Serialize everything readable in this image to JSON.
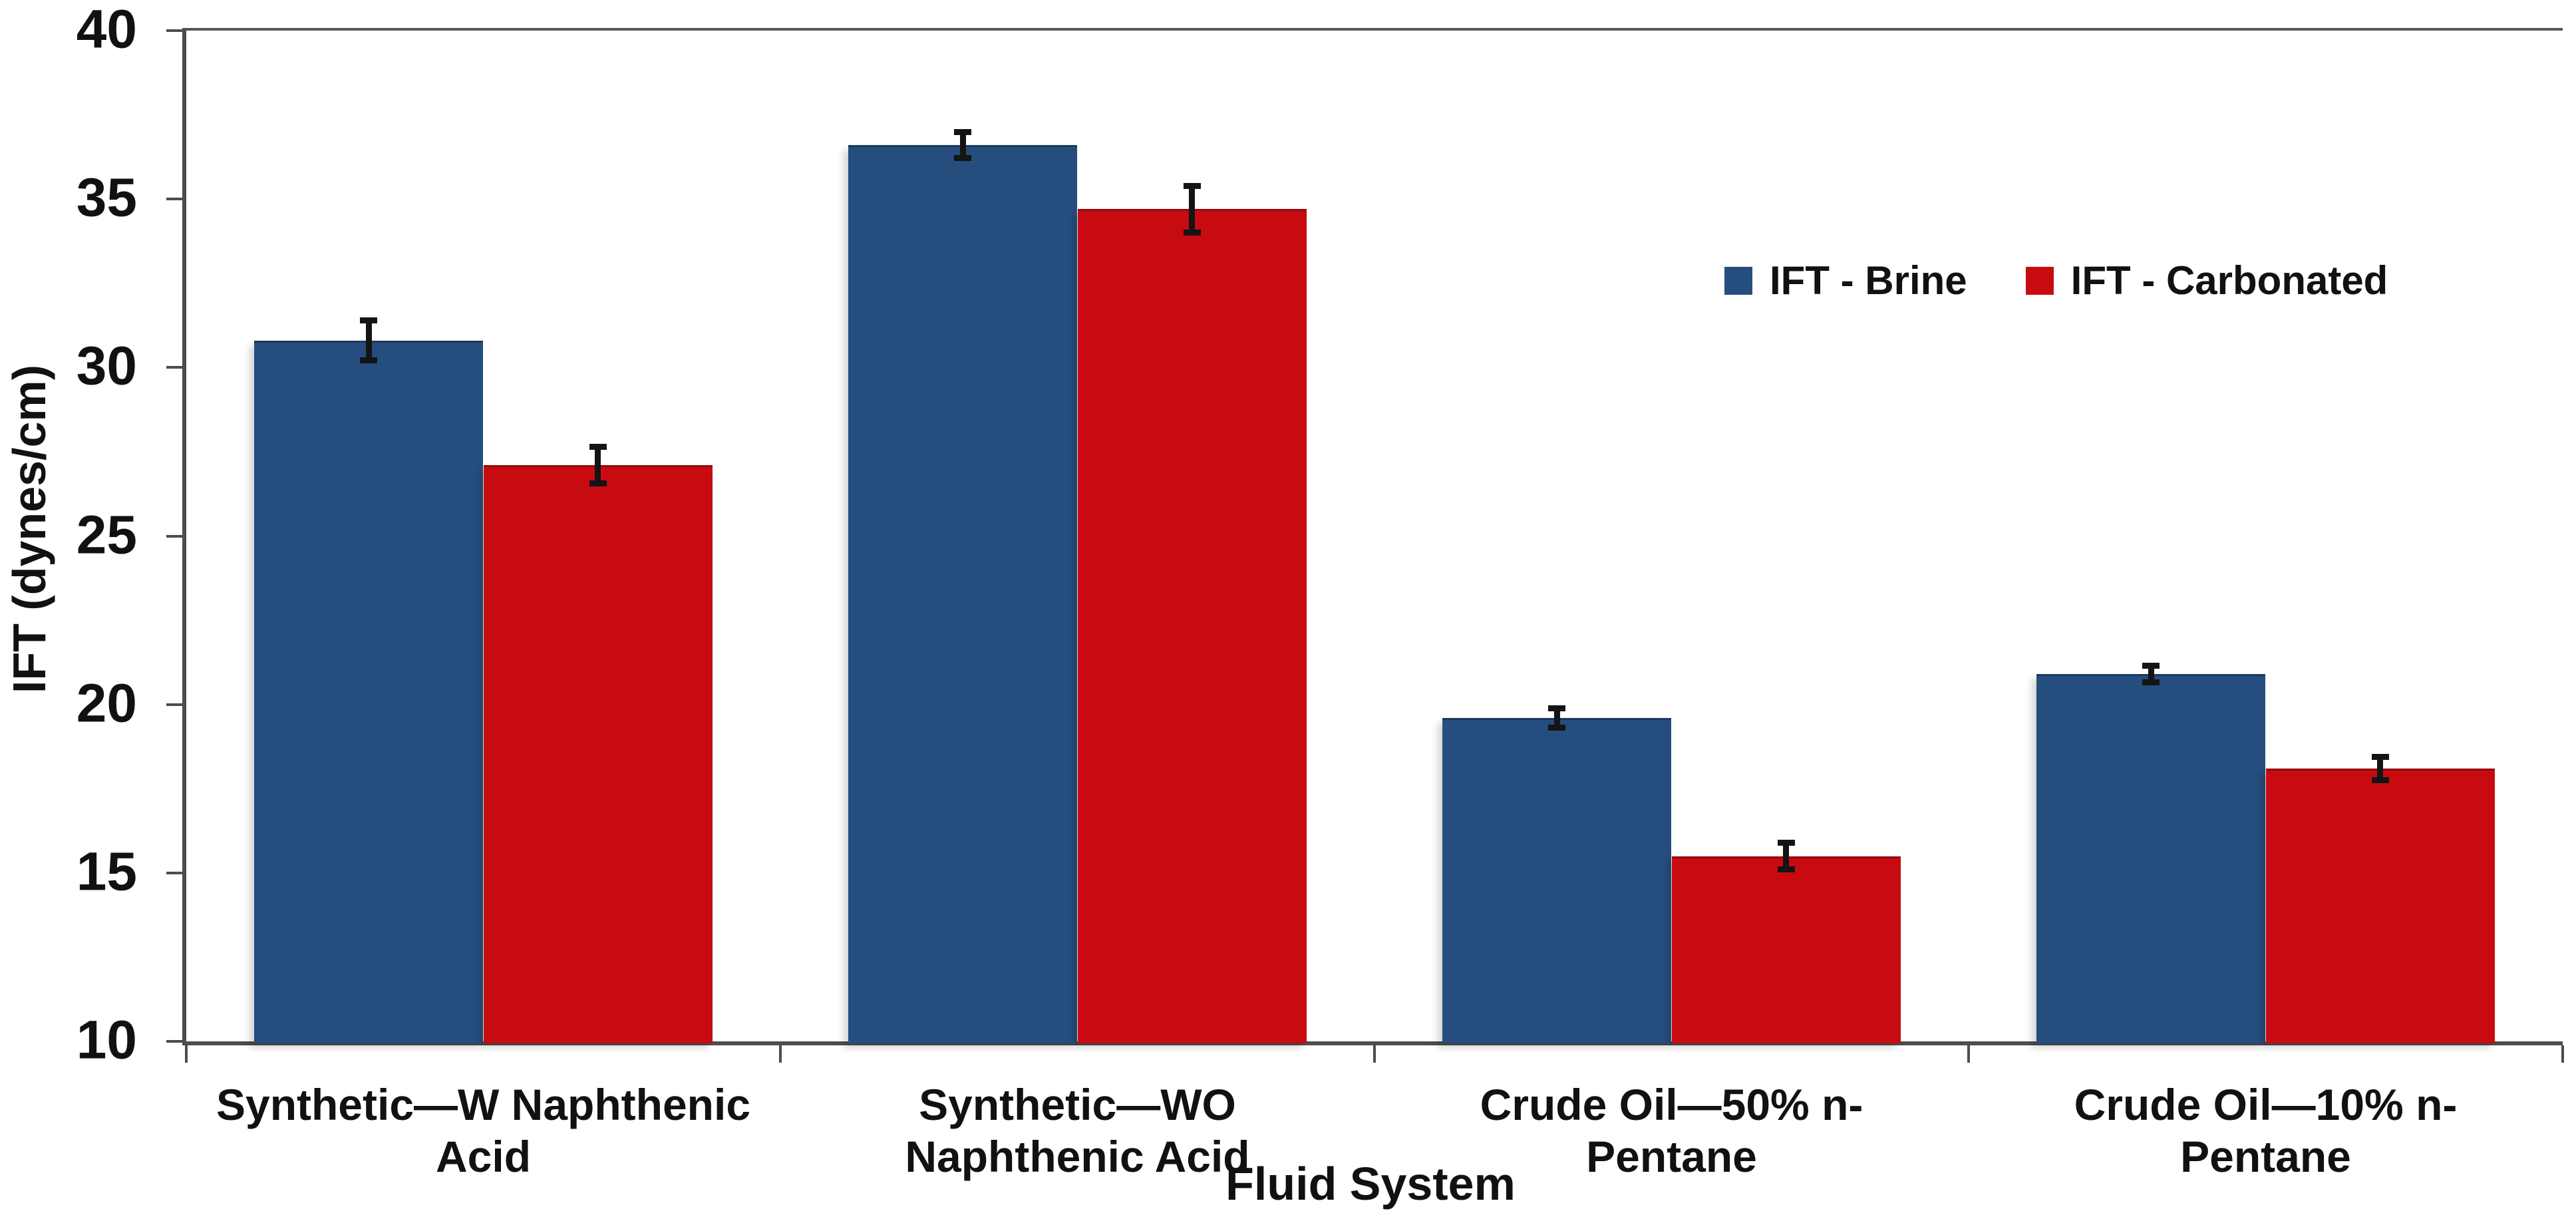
{
  "chart_data": {
    "type": "bar",
    "title": "",
    "xlabel": "Fluid System",
    "ylabel": "IFT (dynes/cm)",
    "ylim": [
      10,
      40
    ],
    "yticks": [
      40,
      35,
      30,
      25,
      20,
      15,
      10
    ],
    "grid": false,
    "legend_position": "inside-top-right",
    "categories": [
      "Synthetic—W Naphthenic Acid",
      "Synthetic—WO Naphthenic Acid",
      "Crude Oil—50% n-Pentane",
      "Crude Oil—10% n-Pentane"
    ],
    "series": [
      {
        "name": "IFT - Brine",
        "color": "#254E7E",
        "border_color": "#1B3A5E",
        "values": [
          30.8,
          36.6,
          19.6,
          20.9
        ],
        "error_bars": [
          0.6,
          0.4,
          0.3,
          0.25
        ]
      },
      {
        "name": "IFT - Carbonated",
        "color": "#C80B10",
        "border_color": "#930B0F",
        "values": [
          27.1,
          34.7,
          15.5,
          18.1
        ],
        "error_bars": [
          0.55,
          0.7,
          0.4,
          0.35
        ]
      }
    ]
  },
  "style_colors": {
    "axis": "#4d4d4d",
    "text": "#111111",
    "error_bar": "#141414",
    "background": "#ffffff"
  }
}
